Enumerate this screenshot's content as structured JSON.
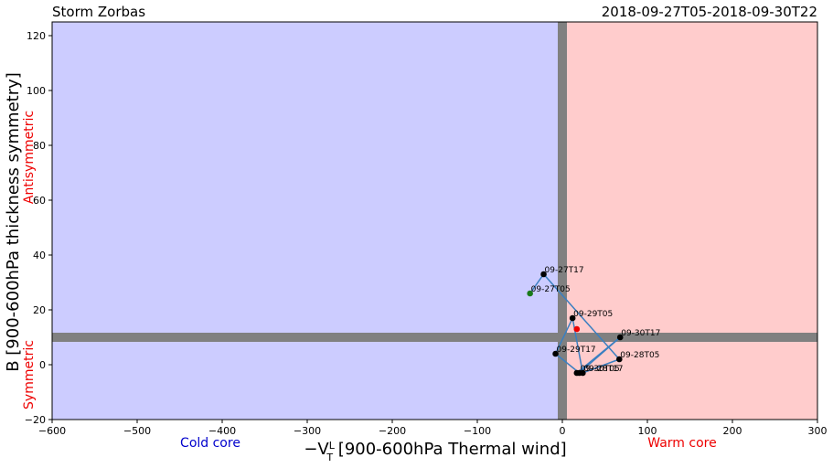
{
  "chart_data": {
    "type": "scatter",
    "title_left": "Storm Zorbas",
    "title_right": "2018-09-27T05-2018-09-30T22",
    "xlabel_prefix": "−V",
    "xlabel_sup": "L",
    "xlabel_sub": "T",
    "xlabel_rest": " [900-600hPa Thermal wind]",
    "ylabel": "B [900-600hPa thickness symmetry]",
    "xlim": [
      -600,
      300
    ],
    "ylim": [
      -20,
      125
    ],
    "xticks": [
      -600,
      -500,
      -400,
      -300,
      -200,
      -100,
      0,
      100,
      200,
      300
    ],
    "yticks": [
      -20,
      0,
      20,
      40,
      60,
      80,
      100,
      120
    ],
    "regions": {
      "cold_label": "Cold core",
      "warm_label": "Warm core",
      "symmetric_label": "Symmetric",
      "antisymmetric_label": "Antisymmetric",
      "cold_color": "#ccccff",
      "warm_color": "#ffcccc",
      "divider_color": "#808080",
      "cold_text_color": "#0000cc",
      "warm_text_color": "#ee0000"
    },
    "threshold_x": 0,
    "threshold_y": 10,
    "line_color": "#3a7fc1",
    "track": [
      {
        "x": -38,
        "y": 26,
        "label": "09-27T05",
        "kind": "start"
      },
      {
        "x": -22,
        "y": 33,
        "label": "09-27T17",
        "kind": "mid"
      },
      {
        "x": 67,
        "y": 2,
        "label": "09-28T05",
        "kind": "mid"
      },
      {
        "x": 24,
        "y": -3,
        "label": "09-28T17",
        "kind": "mid"
      },
      {
        "x": 12,
        "y": 17,
        "label": "09-29T05",
        "kind": "mid"
      },
      {
        "x": -8,
        "y": 4,
        "label": "09-29T17",
        "kind": "mid"
      },
      {
        "x": 20,
        "y": -3,
        "label": "09-30T05",
        "kind": "mid"
      },
      {
        "x": 68,
        "y": 10,
        "label": "09-30T17",
        "kind": "mid"
      },
      {
        "x": 17,
        "y": -3,
        "label": "",
        "kind": "mid"
      }
    ],
    "end_point": {
      "x": 17,
      "y": 13
    },
    "start_color": "#1a7a1a",
    "mid_color": "#000000",
    "end_color": "#ee0000"
  }
}
